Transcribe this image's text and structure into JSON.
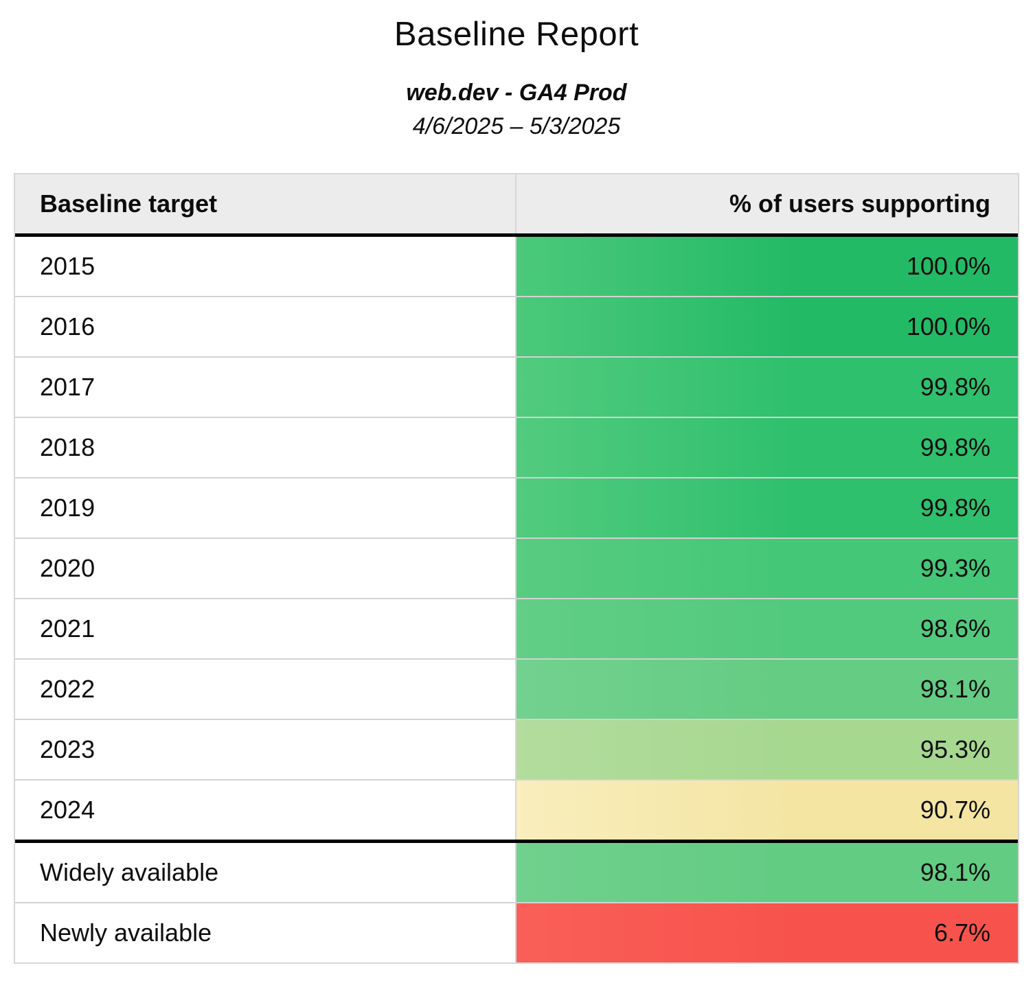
{
  "report": {
    "title": "Baseline Report",
    "property": "web.dev - GA4 Prod",
    "date_range": "4/6/2025 – 5/3/2025"
  },
  "table": {
    "header_background": "#ececec",
    "grid_color": "#d2d2d2",
    "divider_color": "#000000",
    "columns": [
      "Baseline target",
      "% of users supporting"
    ],
    "rows": [
      {
        "target": "2015",
        "value": "100.0%",
        "color": "#23ba66",
        "color_light": "#4cc97b"
      },
      {
        "target": "2016",
        "value": "100.0%",
        "color": "#23ba66",
        "color_light": "#4cc97b"
      },
      {
        "target": "2017",
        "value": "99.8%",
        "color": "#2fc06d",
        "color_light": "#52cb7e"
      },
      {
        "target": "2018",
        "value": "99.8%",
        "color": "#2fc06d",
        "color_light": "#52cb7e"
      },
      {
        "target": "2019",
        "value": "99.8%",
        "color": "#2fc06d",
        "color_light": "#52cb7e"
      },
      {
        "target": "2020",
        "value": "99.3%",
        "color": "#44c777",
        "color_light": "#58cc80"
      },
      {
        "target": "2021",
        "value": "98.6%",
        "color": "#52ca7d",
        "color_light": "#62ce86"
      },
      {
        "target": "2022",
        "value": "98.1%",
        "color": "#64cc83",
        "color_light": "#72d18e"
      },
      {
        "target": "2023",
        "value": "95.3%",
        "color": "#a6d890",
        "color_light": "#b3dc9d"
      },
      {
        "target": "2024",
        "value": "90.7%",
        "color": "#f4e5a3",
        "color_light": "#f9eebc"
      },
      {
        "target": "Widely available",
        "value": "98.1%",
        "color": "#62cc82",
        "color_light": "#70d08d"
      },
      {
        "target": "Newly available",
        "value": "6.7%",
        "color": "#f7534c",
        "color_light": "#f95f58"
      }
    ]
  }
}
